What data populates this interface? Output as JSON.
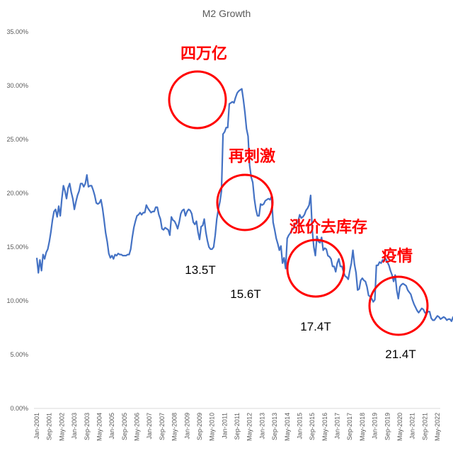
{
  "colors": {
    "line": "#4472C4",
    "annotation": "#FF0000",
    "axis": "#D9D9D9",
    "text": "#595959"
  },
  "chart_data": {
    "type": "line",
    "title": "M2 Growth",
    "xlabel": "",
    "ylabel": "",
    "ylim": [
      0,
      35
    ],
    "grid": false,
    "y_ticks": [
      "0.00%",
      "5.00%",
      "10.00%",
      "15.00%",
      "20.00%",
      "25.00%",
      "30.00%",
      "35.00%"
    ],
    "y_tick_values": [
      0,
      5,
      10,
      15,
      20,
      25,
      30,
      35
    ],
    "x_ticks": [
      "Jan-2001",
      "Sep-2001",
      "May-2002",
      "Jan-2003",
      "Sep-2003",
      "May-2004",
      "Jan-2005",
      "Sep-2005",
      "May-2006",
      "Jan-2007",
      "Sep-2007",
      "May-2008",
      "Jan-2009",
      "Sep-2009",
      "May-2010",
      "Jan-2011",
      "Sep-2011",
      "May-2012",
      "Jan-2013",
      "Sep-2013",
      "May-2014",
      "Jan-2015",
      "Sep-2015",
      "May-2016",
      "Jan-2017",
      "Sep-2017",
      "May-2018",
      "Jan-2019",
      "Sep-2019",
      "May-2020",
      "Jan-2021",
      "Sep-2021",
      "May-2022"
    ],
    "series": [
      {
        "values": [
          14.0,
          12.6,
          13.8,
          12.8,
          14.3,
          13.9,
          14.5,
          14.8,
          15.5,
          16.4,
          17.5,
          18.3,
          18.5,
          17.8,
          18.8,
          17.9,
          19.5,
          20.7,
          20.2,
          19.5,
          20.5,
          20.9,
          20.1,
          19.5,
          18.5,
          19.2,
          19.8,
          20.2,
          20.9,
          20.9,
          20.6,
          20.9,
          21.7,
          20.6,
          20.7,
          20.7,
          20.3,
          19.8,
          19.1,
          19.0,
          19.1,
          19.4,
          18.6,
          17.5,
          16.3,
          15.5,
          14.4,
          14.0,
          14.2,
          13.9,
          14.3,
          14.2,
          14.4,
          14.3,
          14.3,
          14.2,
          14.2,
          14.2,
          14.3,
          14.3,
          14.8,
          15.9,
          16.8,
          17.4,
          17.9,
          18.0,
          18.2,
          18.0,
          18.2,
          18.2,
          18.9,
          18.6,
          18.4,
          18.2,
          18.3,
          18.3,
          18.7,
          18.7,
          18.0,
          17.6,
          16.7,
          16.6,
          16.8,
          16.7,
          16.6,
          16.1,
          17.8,
          17.5,
          17.4,
          17.1,
          16.7,
          17.3,
          18.1,
          18.4,
          18.5,
          17.9,
          18.3,
          18.5,
          18.4,
          18.1,
          17.3,
          17.1,
          17.4,
          16.4,
          15.7,
          16.9,
          17.0,
          17.6,
          16.4,
          15.6,
          15.0,
          14.8,
          14.8,
          15.0,
          16.1,
          17.6,
          18.5,
          19.2,
          20.2,
          25.5,
          25.7,
          26.1,
          26.1,
          28.3,
          28.4,
          28.5,
          28.4,
          28.9,
          29.3,
          29.5,
          29.6,
          29.7,
          28.7,
          27.5,
          26.0,
          25.3,
          22.6,
          21.5,
          21.0,
          19.5,
          18.5,
          17.9,
          17.9,
          19.0,
          18.9,
          19.0,
          19.3,
          19.4,
          19.5,
          19.4,
          19.7,
          17.3,
          16.6,
          15.8,
          15.3,
          14.7,
          15.1,
          13.5,
          14.0,
          13.0,
          15.8,
          16.1,
          16.3,
          16.6,
          16.7,
          17.1,
          17.2,
          17.4,
          18.0,
          17.7,
          17.8,
          18.0,
          18.4,
          18.6,
          18.9,
          19.8,
          16.6,
          15.0,
          14.2,
          16.0,
          15.5,
          15.4,
          15.9,
          14.7,
          14.9,
          14.8,
          14.2,
          14.1,
          13.9,
          13.2,
          13.2,
          12.7,
          13.5,
          13.9,
          13.2,
          13.2,
          12.7,
          12.3,
          12.2,
          12.0,
          12.8,
          13.5,
          14.7,
          13.4,
          12.6,
          11.0,
          11.1,
          11.9,
          12.1,
          11.9,
          11.8,
          11.3,
          10.5,
          10.4,
          10.2,
          9.9,
          10.1,
          13.3,
          13.3,
          13.6,
          13.5,
          13.8,
          13.7,
          13.9,
          13.6,
          13.3,
          12.8,
          12.4,
          11.8,
          12.4,
          11.0,
          10.2,
          11.3,
          11.5,
          11.6,
          11.5,
          11.4,
          11.0,
          10.8,
          10.6,
          10.1,
          9.7,
          9.4,
          9.1,
          8.9,
          9.1,
          9.3,
          9.2,
          8.9,
          8.8,
          9.0,
          9.0,
          8.4,
          8.2,
          8.2,
          8.4,
          8.6,
          8.5,
          8.3,
          8.4,
          8.5,
          8.4,
          8.2,
          8.3,
          8.3,
          8.1,
          8.5,
          8.5,
          8.4,
          8.1,
          8.2,
          8.6,
          8.4,
          8.1,
          8.0,
          8.4,
          8.7,
          8.5,
          8.3,
          8.2,
          8.8,
          8.5,
          8.7,
          8.7,
          8.5,
          8.4,
          8.4,
          8.6,
          8.8,
          8.4,
          8.4,
          8.8,
          8.4,
          8.7,
          9.0,
          9.5,
          9.9,
          10.1,
          11.1,
          11.1,
          11.1,
          10.7,
          10.9,
          11.1,
          10.9,
          10.5,
          10.5,
          10.7,
          10.7,
          10.1,
          9.4,
          9.4,
          10.1,
          9.4,
          8.3,
          8.0,
          8.3,
          8.4,
          8.6,
          8.4,
          8.2,
          8.2,
          8.2,
          8.3
        ]
      }
    ],
    "annotations": [
      {
        "label": "四万亿",
        "value_label": "13.5T"
      },
      {
        "label": "再刺激",
        "value_label": "15.6T"
      },
      {
        "label": "涨价去库存",
        "value_label": "17.4T"
      },
      {
        "label": "疫情",
        "value_label": "21.4T"
      }
    ]
  }
}
